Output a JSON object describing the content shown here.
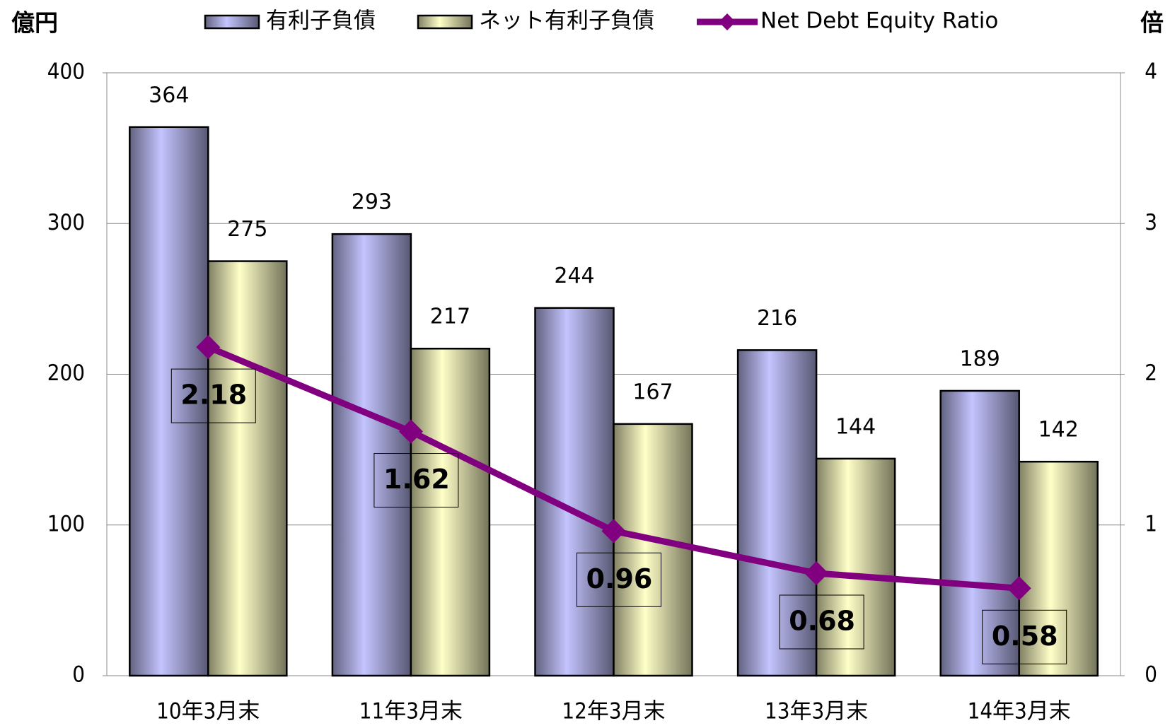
{
  "chart_data": {
    "type": "bar+line",
    "y_label": "億円",
    "y2_label": "倍",
    "categories": [
      "10年3月末",
      "11年3月末",
      "12年3月末",
      "13年3月末",
      "14年3月末"
    ],
    "series": [
      {
        "name": "有利子負債",
        "type": "bar",
        "color": "#c4c4ff",
        "values": [
          364,
          293,
          244,
          216,
          189
        ]
      },
      {
        "name": "ネット有利子負債",
        "type": "bar",
        "color": "#ffffc8",
        "values": [
          275,
          217,
          167,
          144,
          142
        ]
      },
      {
        "name": "Net Debt Equity Ratio",
        "type": "line",
        "axis": "y2",
        "color": "#800080",
        "values": [
          2.18,
          1.62,
          0.96,
          0.68,
          0.58
        ]
      }
    ],
    "ylim": [
      0,
      400
    ],
    "yticks": [
      0,
      100,
      200,
      300,
      400
    ],
    "y2lim": [
      0,
      4
    ],
    "y2ticks": [
      0,
      1,
      2,
      3,
      4
    ],
    "grid": true
  }
}
